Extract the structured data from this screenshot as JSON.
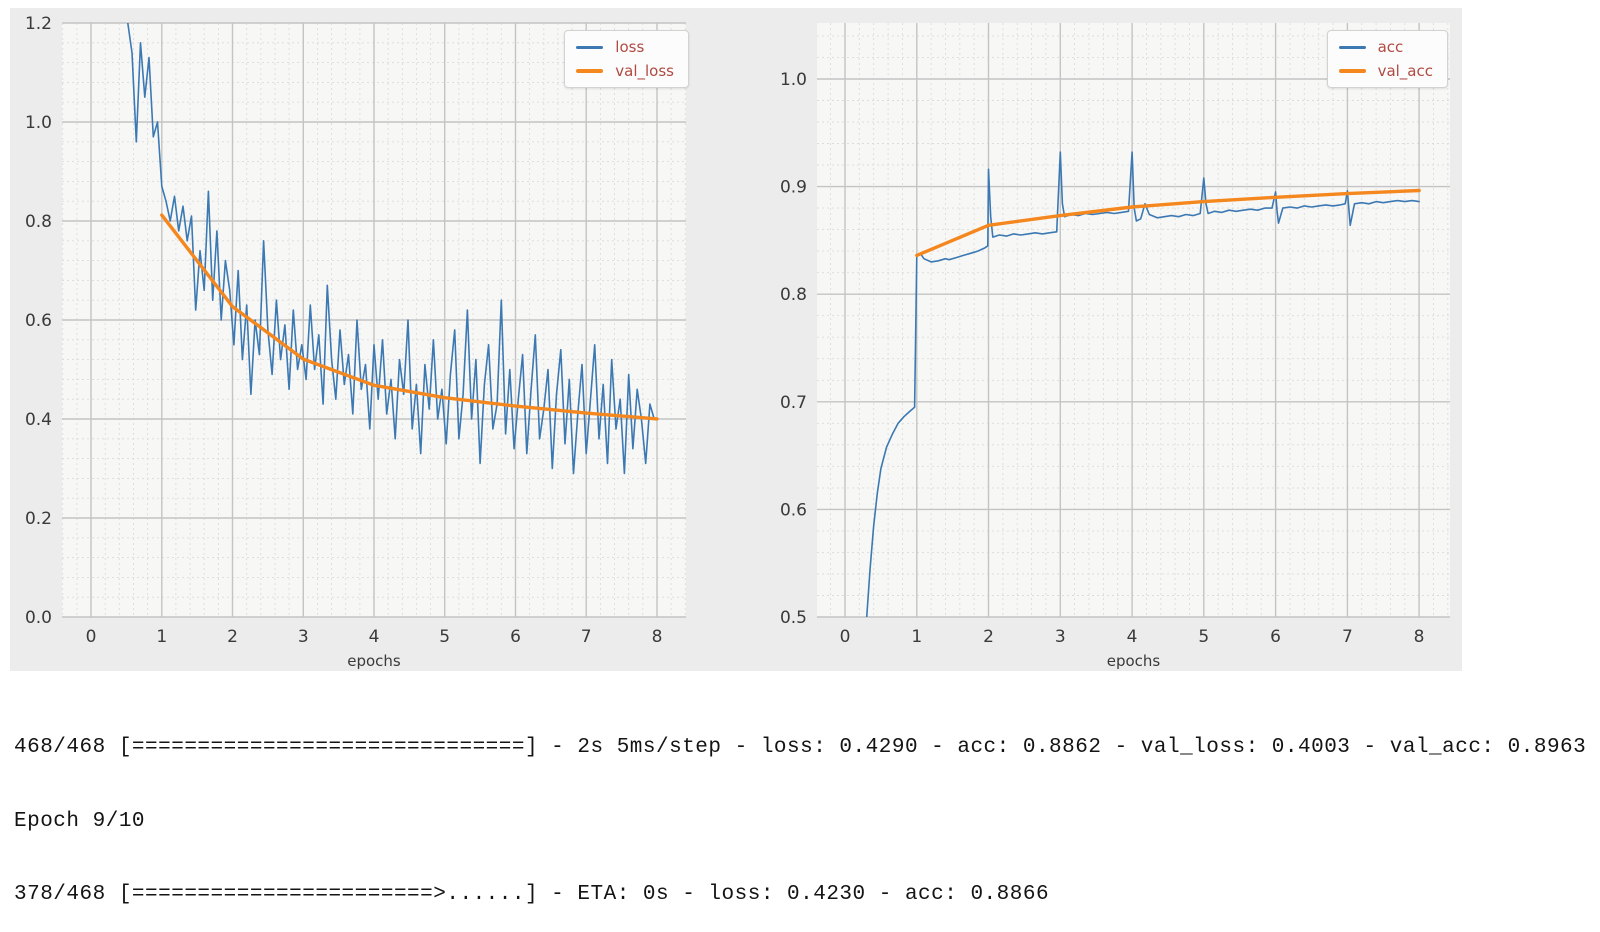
{
  "colors": {
    "figure_bg": "#ececec",
    "plot_bg": "#f7f7f6",
    "grid_major": "#c4c4c4",
    "grid_minor": "#dcdcdc",
    "tick_label": "#3a3a3a",
    "legend_text": "#b04a42",
    "loss_blue": "#3c79b3",
    "val_orange": "#f5871f"
  },
  "chart_data": [
    {
      "type": "line",
      "title": "",
      "xlabel": "epochs",
      "ylabel": "",
      "xlim": [
        -0.41,
        8.41
      ],
      "ylim": [
        0,
        1.2
      ],
      "x_ticks": {
        "values": [
          0,
          1,
          2,
          3,
          4,
          5,
          6,
          7,
          8
        ],
        "labels": [
          "0",
          "1",
          "2",
          "3",
          "4",
          "5",
          "6",
          "7",
          "8"
        ]
      },
      "y_ticks": {
        "values": [
          0,
          0.2,
          0.4,
          0.6,
          0.8,
          1.0,
          1.2
        ],
        "labels": [
          "0.0",
          "0.2",
          "0.4",
          "0.6",
          "0.8",
          "1.0",
          "1.2"
        ]
      },
      "grid": {
        "on": true,
        "x_minor": 0.2,
        "y_minor": 0.04
      },
      "legend_position": "upper right",
      "series": [
        {
          "name": "loss",
          "color": "#3c79b3",
          "line_width": 1.6,
          "x_start": 0.52,
          "x_step": 0.06,
          "values": [
            1.2,
            1.14,
            0.96,
            1.16,
            1.05,
            1.13,
            0.97,
            1.0,
            0.87,
            0.84,
            0.8,
            0.85,
            0.78,
            0.83,
            0.76,
            0.81,
            0.62,
            0.74,
            0.66,
            0.86,
            0.64,
            0.78,
            0.6,
            0.72,
            0.66,
            0.55,
            0.7,
            0.52,
            0.63,
            0.45,
            0.6,
            0.53,
            0.76,
            0.58,
            0.49,
            0.64,
            0.52,
            0.59,
            0.46,
            0.62,
            0.5,
            0.55,
            0.48,
            0.63,
            0.5,
            0.57,
            0.43,
            0.67,
            0.52,
            0.44,
            0.58,
            0.47,
            0.53,
            0.41,
            0.6,
            0.46,
            0.51,
            0.38,
            0.55,
            0.44,
            0.56,
            0.41,
            0.48,
            0.36,
            0.52,
            0.45,
            0.6,
            0.38,
            0.47,
            0.33,
            0.51,
            0.42,
            0.56,
            0.4,
            0.46,
            0.35,
            0.49,
            0.58,
            0.36,
            0.45,
            0.62,
            0.4,
            0.52,
            0.31,
            0.47,
            0.55,
            0.38,
            0.43,
            0.64,
            0.37,
            0.5,
            0.34,
            0.44,
            0.53,
            0.33,
            0.46,
            0.57,
            0.36,
            0.42,
            0.5,
            0.3,
            0.45,
            0.54,
            0.35,
            0.48,
            0.29,
            0.41,
            0.51,
            0.33,
            0.44,
            0.55,
            0.36,
            0.47,
            0.31,
            0.52,
            0.38,
            0.44,
            0.29,
            0.49,
            0.34,
            0.46,
            0.4,
            0.31,
            0.43,
            0.4
          ]
        },
        {
          "name": "val_loss",
          "color": "#f5871f",
          "line_width": 3.4,
          "points": [
            [
              1,
              0.812
            ],
            [
              2,
              0.627
            ],
            [
              3,
              0.521
            ],
            [
              4,
              0.468
            ],
            [
              5,
              0.443
            ],
            [
              6,
              0.426
            ],
            [
              7,
              0.412
            ],
            [
              8,
              0.4003
            ]
          ]
        }
      ]
    },
    {
      "type": "line",
      "title": "",
      "xlabel": "epochs",
      "ylabel": "",
      "xlim": [
        -0.39,
        8.43
      ],
      "ylim": [
        0.5,
        1.052
      ],
      "x_ticks": {
        "values": [
          0,
          1,
          2,
          3,
          4,
          5,
          6,
          7,
          8
        ],
        "labels": [
          "0",
          "1",
          "2",
          "3",
          "4",
          "5",
          "6",
          "7",
          "8"
        ]
      },
      "y_ticks": {
        "values": [
          0.5,
          0.6,
          0.7,
          0.8,
          0.9,
          1.0
        ],
        "labels": [
          "0.5",
          "0.6",
          "0.7",
          "0.8",
          "0.9",
          "1.0"
        ]
      },
      "grid": {
        "on": true,
        "x_minor": 0.2,
        "y_minor": 0.02
      },
      "legend_position": "upper right",
      "series": [
        {
          "name": "acc",
          "color": "#3c79b3",
          "line_width": 1.6,
          "points": [
            [
              0.3,
              0.497
            ],
            [
              0.35,
              0.545
            ],
            [
              0.4,
              0.585
            ],
            [
              0.45,
              0.615
            ],
            [
              0.5,
              0.638
            ],
            [
              0.58,
              0.658
            ],
            [
              0.66,
              0.67
            ],
            [
              0.74,
              0.68
            ],
            [
              0.82,
              0.686
            ],
            [
              0.9,
              0.691
            ],
            [
              0.97,
              0.695
            ],
            [
              1.0,
              0.836
            ],
            [
              1.05,
              0.838
            ],
            [
              1.1,
              0.833
            ],
            [
              1.2,
              0.83
            ],
            [
              1.3,
              0.831
            ],
            [
              1.4,
              0.833
            ],
            [
              1.45,
              0.832
            ],
            [
              1.55,
              0.834
            ],
            [
              1.65,
              0.836
            ],
            [
              1.75,
              0.838
            ],
            [
              1.85,
              0.84
            ],
            [
              1.95,
              0.843
            ],
            [
              1.99,
              0.845
            ],
            [
              2.0,
              0.916
            ],
            [
              2.03,
              0.872
            ],
            [
              2.06,
              0.853
            ],
            [
              2.15,
              0.855
            ],
            [
              2.25,
              0.854
            ],
            [
              2.35,
              0.856
            ],
            [
              2.45,
              0.855
            ],
            [
              2.55,
              0.856
            ],
            [
              2.65,
              0.857
            ],
            [
              2.75,
              0.856
            ],
            [
              2.85,
              0.857
            ],
            [
              2.95,
              0.858
            ],
            [
              3.0,
              0.932
            ],
            [
              3.03,
              0.884
            ],
            [
              3.06,
              0.872
            ],
            [
              3.15,
              0.874
            ],
            [
              3.25,
              0.873
            ],
            [
              3.35,
              0.875
            ],
            [
              3.45,
              0.874
            ],
            [
              3.55,
              0.875
            ],
            [
              3.65,
              0.876
            ],
            [
              3.75,
              0.875
            ],
            [
              3.85,
              0.876
            ],
            [
              3.95,
              0.877
            ],
            [
              4.0,
              0.932
            ],
            [
              4.03,
              0.88
            ],
            [
              4.06,
              0.868
            ],
            [
              4.12,
              0.87
            ],
            [
              4.18,
              0.884
            ],
            [
              4.24,
              0.874
            ],
            [
              4.35,
              0.871
            ],
            [
              4.45,
              0.872
            ],
            [
              4.55,
              0.873
            ],
            [
              4.65,
              0.872
            ],
            [
              4.75,
              0.874
            ],
            [
              4.85,
              0.873
            ],
            [
              4.95,
              0.875
            ],
            [
              5.0,
              0.908
            ],
            [
              5.03,
              0.884
            ],
            [
              5.06,
              0.875
            ],
            [
              5.15,
              0.877
            ],
            [
              5.25,
              0.876
            ],
            [
              5.35,
              0.878
            ],
            [
              5.45,
              0.877
            ],
            [
              5.55,
              0.878
            ],
            [
              5.65,
              0.879
            ],
            [
              5.75,
              0.878
            ],
            [
              5.85,
              0.88
            ],
            [
              5.95,
              0.88
            ],
            [
              6.0,
              0.895
            ],
            [
              6.02,
              0.878
            ],
            [
              6.04,
              0.866
            ],
            [
              6.1,
              0.88
            ],
            [
              6.2,
              0.881
            ],
            [
              6.3,
              0.88
            ],
            [
              6.4,
              0.882
            ],
            [
              6.5,
              0.881
            ],
            [
              6.6,
              0.882
            ],
            [
              6.7,
              0.883
            ],
            [
              6.8,
              0.882
            ],
            [
              6.9,
              0.883
            ],
            [
              6.97,
              0.884
            ],
            [
              7.0,
              0.896
            ],
            [
              7.02,
              0.88
            ],
            [
              7.04,
              0.864
            ],
            [
              7.1,
              0.884
            ],
            [
              7.2,
              0.885
            ],
            [
              7.3,
              0.884
            ],
            [
              7.4,
              0.886
            ],
            [
              7.5,
              0.885
            ],
            [
              7.6,
              0.886
            ],
            [
              7.7,
              0.887
            ],
            [
              7.8,
              0.886
            ],
            [
              7.9,
              0.887
            ],
            [
              8.0,
              0.886
            ]
          ]
        },
        {
          "name": "val_acc",
          "color": "#f5871f",
          "line_width": 3.4,
          "points": [
            [
              1,
              0.836
            ],
            [
              2,
              0.864
            ],
            [
              3,
              0.873
            ],
            [
              4,
              0.881
            ],
            [
              5,
              0.886
            ],
            [
              6,
              0.89
            ],
            [
              7,
              0.8935
            ],
            [
              8,
              0.8963
            ]
          ]
        }
      ]
    }
  ],
  "console": {
    "lines": [
      "468/468 [==============================] - 2s 5ms/step - loss: 0.4290 - acc: 0.8862 - val_loss: 0.4003 - val_acc: 0.8963",
      "Epoch 9/10",
      "378/468 [=======================>......] - ETA: 0s - loss: 0.4230 - acc: 0.8866"
    ]
  }
}
